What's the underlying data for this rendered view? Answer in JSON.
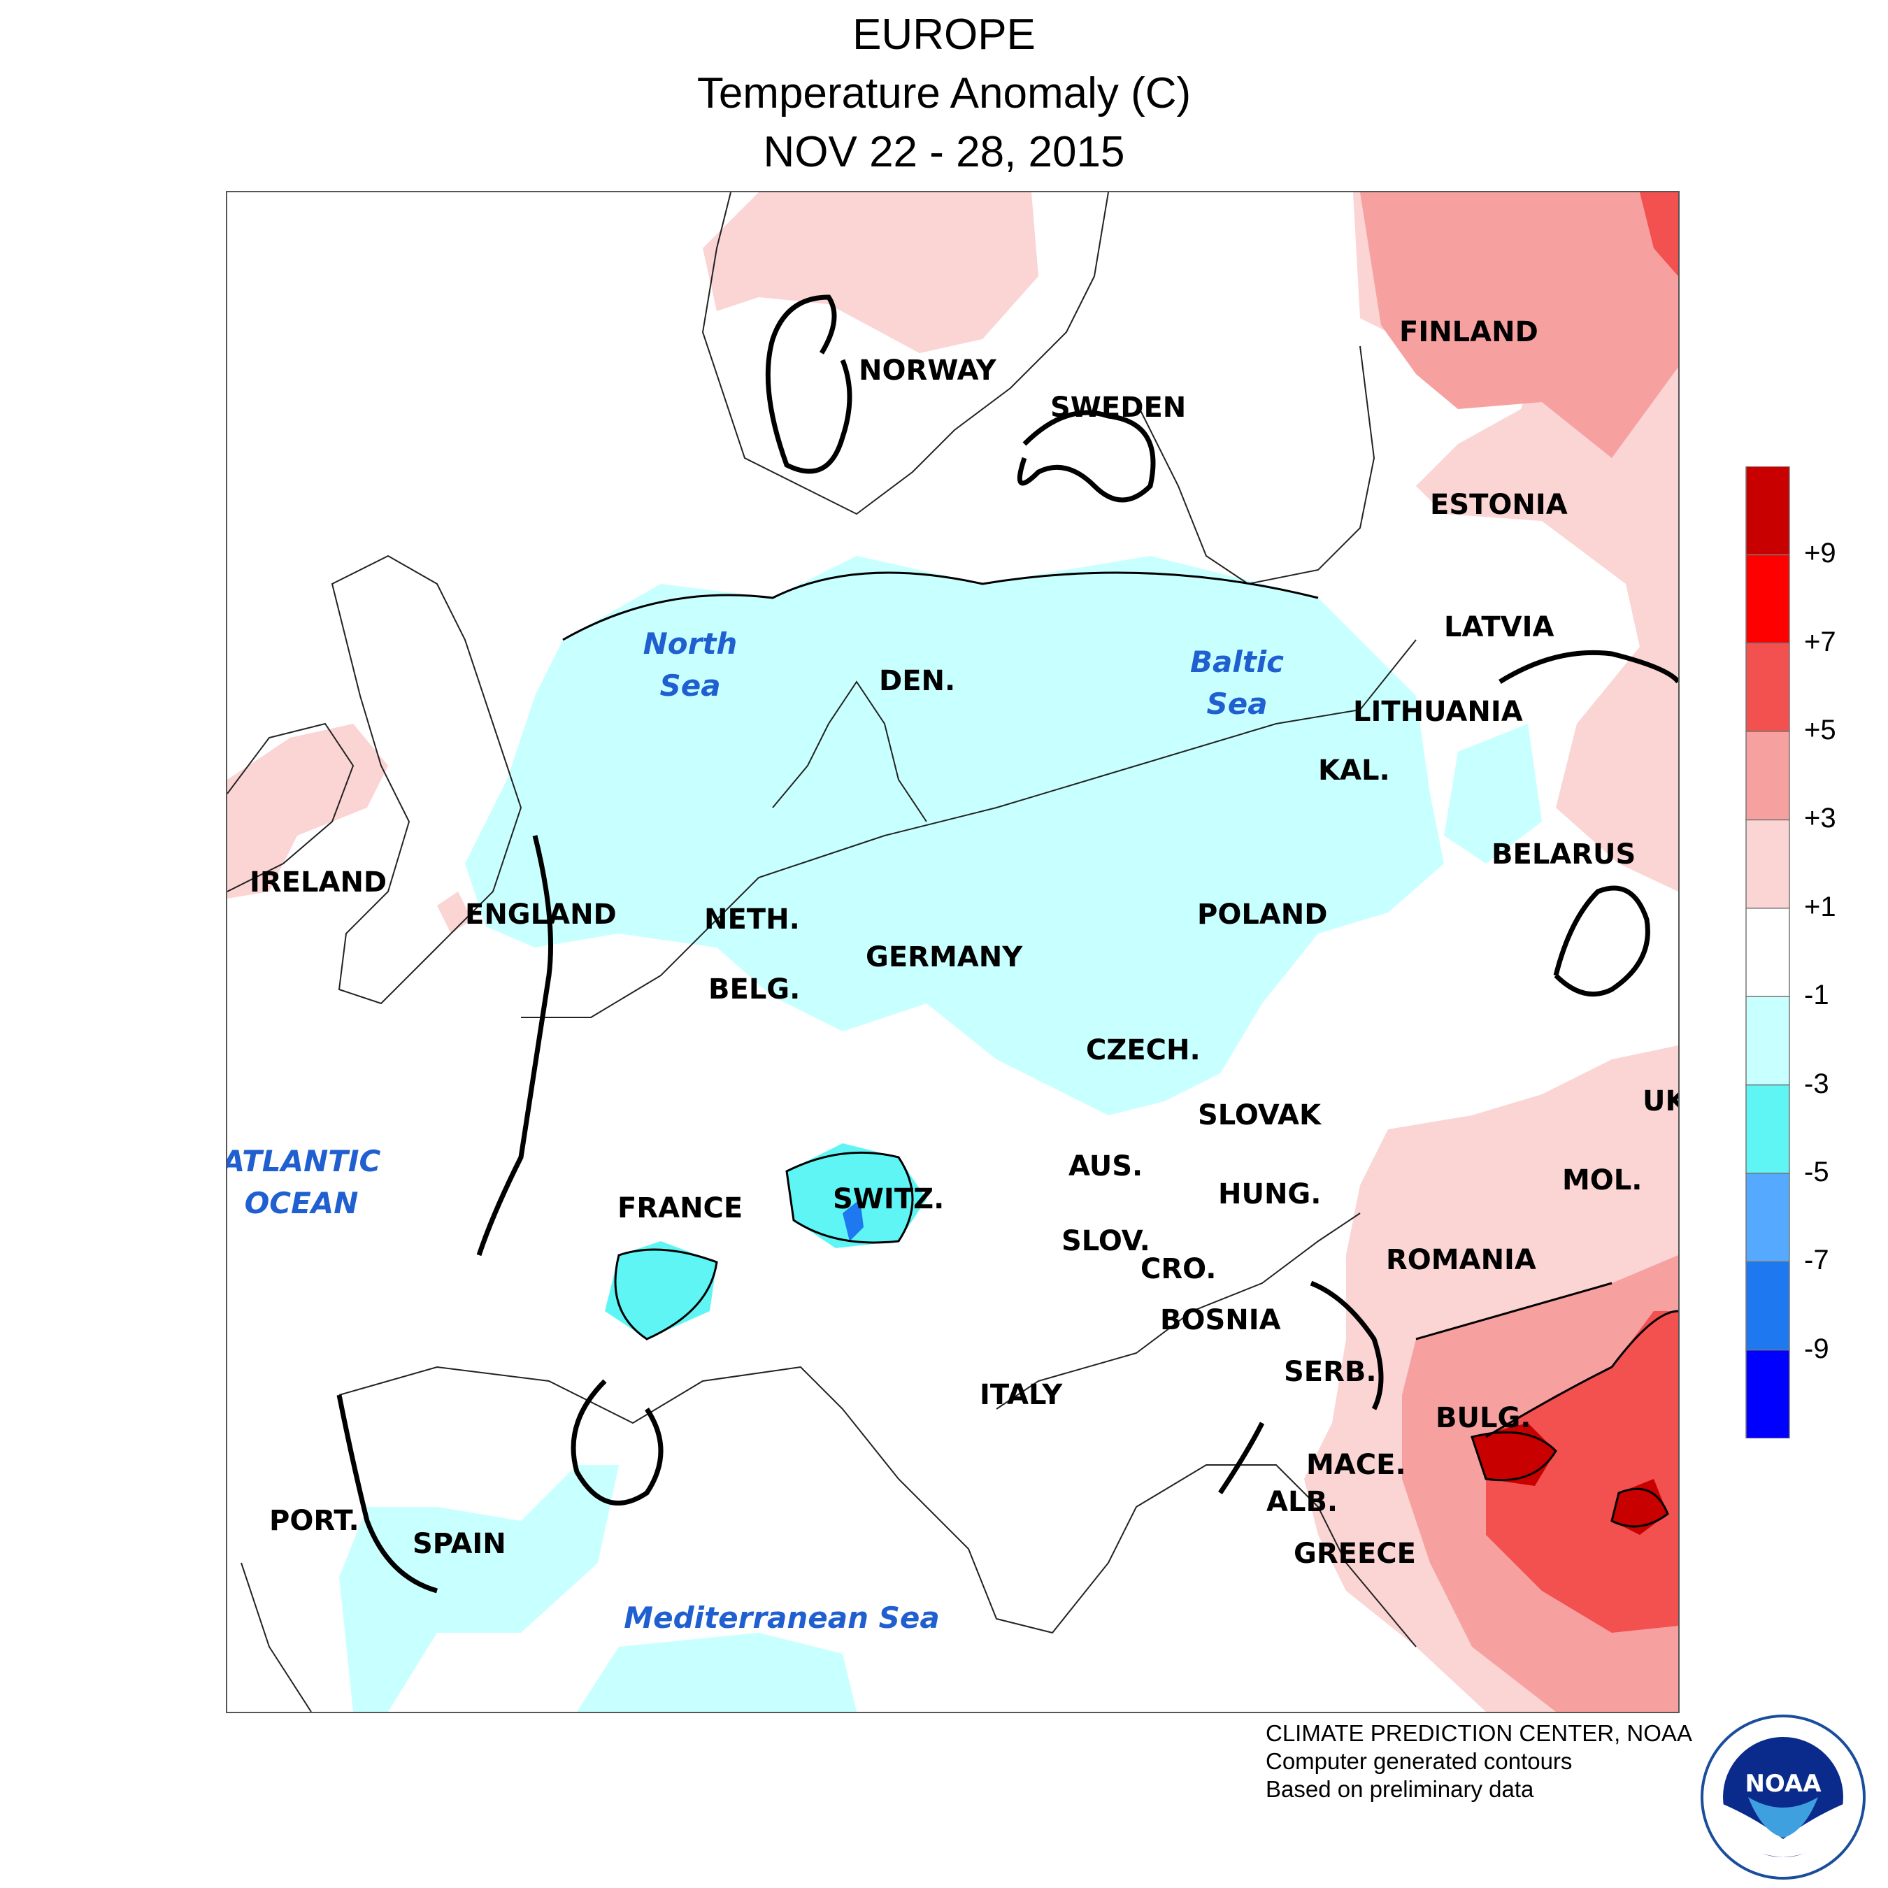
{
  "header": {
    "title": "EUROPE",
    "subtitle": "Temperature Anomaly (C)",
    "dates": "NOV 22 - 28, 2015"
  },
  "countries": [
    "NORWAY",
    "SWEDEN",
    "FINLAND",
    "ESTONIA",
    "LATVIA",
    "LITHUANIA",
    "KAL.",
    "BELARUS",
    "DEN.",
    "IRELAND",
    "ENGLAND",
    "NETH.",
    "BELG.",
    "GERMANY",
    "POLAND",
    "CZECH.",
    "SLOVAK",
    "UK",
    "MOL.",
    "AUS.",
    "HUNG.",
    "FRANCE",
    "SWITZ.",
    "SLOV.",
    "CRO.",
    "ROMANIA",
    "BOSNIA",
    "SERB.",
    "ITALY",
    "BULG.",
    "MACE.",
    "ALB.",
    "PORT.",
    "SPAIN",
    "GREECE"
  ],
  "seas": {
    "north_sea": [
      "North",
      "Sea"
    ],
    "baltic_sea": [
      "Baltic",
      "Sea"
    ],
    "atlantic": [
      "ATLANTIC",
      "OCEAN"
    ],
    "mediterranean": "Mediterranean Sea"
  },
  "legend": {
    "colors": [
      "#c80000",
      "#ff0000",
      "#f35050",
      "#f7a0a0",
      "#fbd4d4",
      "#ffffff",
      "#c8ffff",
      "#5ff5f5",
      "#55aaff",
      "#1e78f0",
      "#0000ff"
    ],
    "ticks": [
      "+9",
      "+7",
      "+5",
      "+3",
      "+1",
      "-1",
      "-3",
      "-5",
      "-7",
      "-9"
    ]
  },
  "credits": [
    "CLIMATE PREDICTION CENTER, NOAA",
    "Computer generated contours",
    "Based on preliminary data"
  ],
  "logo_text": "NOAA"
}
